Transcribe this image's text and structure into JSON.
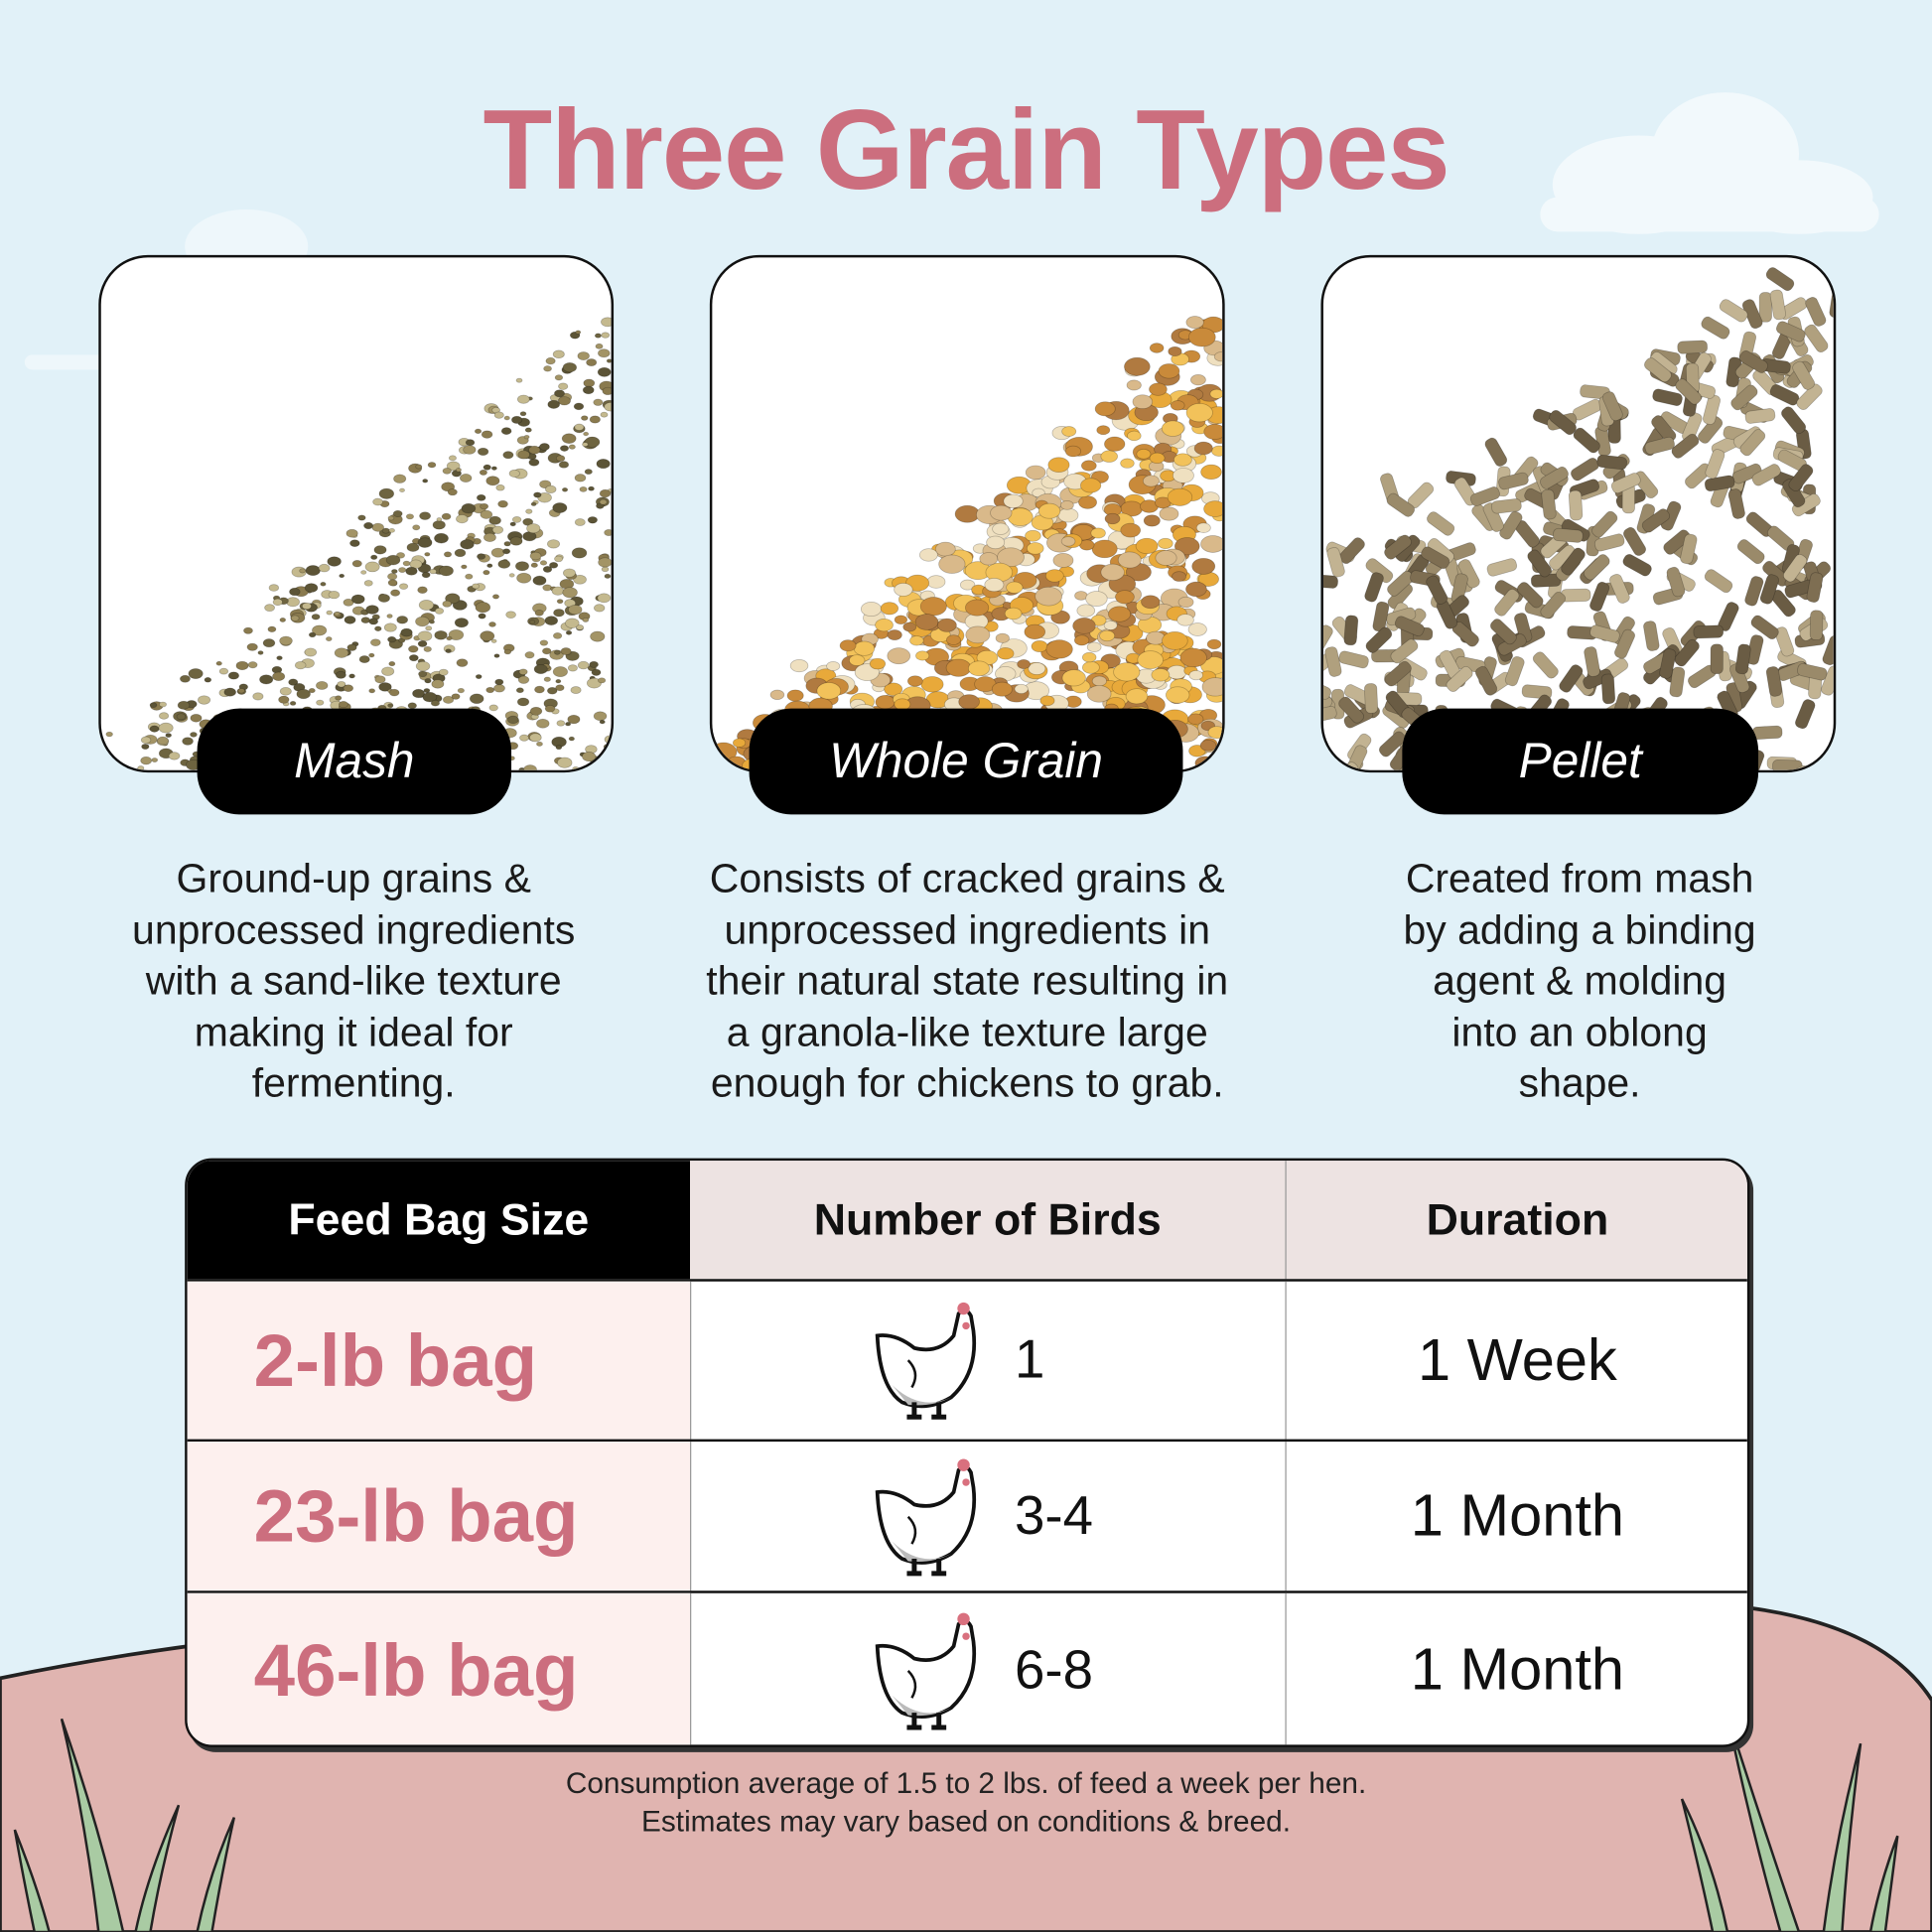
{
  "title": "Three Grain Types",
  "colors": {
    "accent": "#cc6e7e",
    "sky": "#e1f1f8",
    "ground": "#e0b4b0",
    "grass": "#a9cba3",
    "row_highlight": "#fdf0ee",
    "header_light": "#ede3e2"
  },
  "grain_types": [
    {
      "name": "Mash",
      "image": "mash-feed-photo",
      "description": [
        "Ground-up grains &",
        "unprocessed ingredients",
        "with a sand-like texture",
        "making it ideal for",
        "fermenting."
      ]
    },
    {
      "name": "Whole Grain",
      "image": "whole-grain-feed-photo",
      "description": [
        "Consists of cracked grains &",
        "unprocessed ingredients in",
        "their natural state resulting in",
        "a granola-like texture large",
        "enough for chickens to grab."
      ]
    },
    {
      "name": "Pellet",
      "image": "pellet-feed-photo",
      "description": [
        "Created from mash",
        "by adding a binding",
        "agent & molding",
        "into an oblong",
        "shape."
      ]
    }
  ],
  "table": {
    "headers": [
      "Feed Bag Size",
      "Number of Birds",
      "Duration"
    ],
    "rows": [
      {
        "size": "2-lb bag",
        "birds": "1",
        "duration": "1 Week",
        "icon": "chicken-icon"
      },
      {
        "size": "23-lb bag",
        "birds": "3-4",
        "duration": "1 Month",
        "icon": "chicken-icon"
      },
      {
        "size": "46-lb bag",
        "birds": "6-8",
        "duration": "1 Month",
        "icon": "chicken-icon"
      }
    ]
  },
  "footnote": [
    "Consumption average of 1.5 to 2 lbs. of feed a week per hen.",
    "Estimates may vary based on conditions & breed."
  ]
}
